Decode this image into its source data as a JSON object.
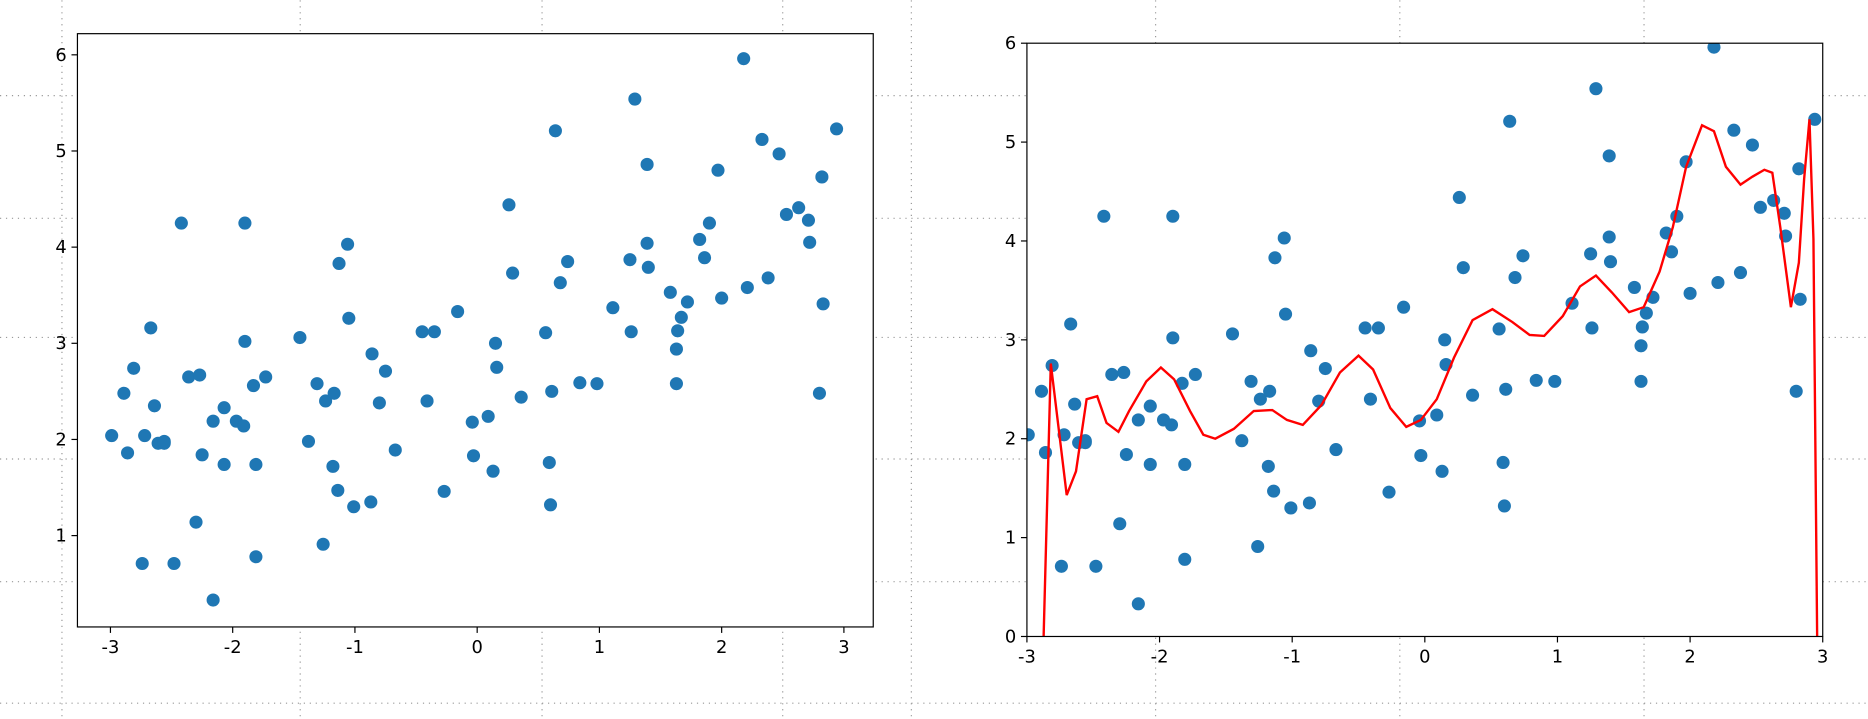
{
  "chart_data": [
    {
      "type": "scatter",
      "xlim": [
        -3.27,
        3.24
      ],
      "ylim": [
        0.05,
        6.22
      ],
      "xticks": [
        -3,
        -2,
        -1,
        0,
        1,
        2,
        3
      ],
      "yticks": [
        1,
        2,
        3,
        4,
        5,
        6
      ],
      "series": [
        {
          "type": "scatter",
          "color": "#1f77b4",
          "x": [
            -2.99,
            -2.89,
            -2.86,
            -2.81,
            -2.74,
            -2.72,
            -2.67,
            -2.64,
            -2.61,
            -2.56,
            -2.56,
            -2.48,
            -2.42,
            -2.36,
            -2.3,
            -2.27,
            -2.25,
            -2.16,
            -2.16,
            -2.07,
            -2.07,
            -1.97,
            -1.91,
            -1.9,
            -1.9,
            -1.83,
            -1.81,
            -1.81,
            -1.73,
            -1.45,
            -1.38,
            -1.31,
            -1.26,
            -1.24,
            -1.17,
            -1.18,
            -1.14,
            -1.13,
            -1.06,
            -1.05,
            -1.01,
            -0.87,
            -0.86,
            -0.8,
            -0.75,
            -0.67,
            -0.45,
            -0.41,
            -0.35,
            -0.27,
            -0.16,
            -0.04,
            -0.03,
            0.09,
            0.13,
            0.15,
            0.16,
            0.26,
            0.29,
            0.36,
            0.56,
            0.59,
            0.6,
            0.61,
            0.64,
            0.68,
            0.74,
            0.84,
            0.98,
            1.11,
            1.25,
            1.26,
            1.29,
            1.39,
            1.39,
            1.4,
            1.58,
            1.63,
            1.63,
            1.64,
            1.67,
            1.72,
            1.82,
            1.86,
            1.9,
            1.97,
            2.0,
            2.18,
            2.21,
            2.33,
            2.38,
            2.47,
            2.53,
            2.63,
            2.71,
            2.72,
            2.82,
            2.83,
            2.8,
            2.94
          ],
          "values": [
            2.04,
            2.48,
            1.86,
            2.74,
            0.71,
            2.04,
            3.16,
            2.35,
            1.96,
            1.98,
            1.96,
            0.71,
            4.25,
            2.65,
            1.14,
            2.67,
            1.84,
            0.33,
            2.19,
            2.33,
            1.74,
            2.19,
            2.14,
            4.25,
            3.02,
            2.56,
            0.78,
            1.74,
            2.65,
            3.06,
            1.98,
            2.58,
            0.91,
            2.4,
            2.48,
            1.72,
            1.47,
            3.83,
            4.03,
            3.26,
            1.3,
            1.35,
            2.89,
            2.38,
            2.71,
            1.89,
            3.12,
            2.4,
            3.12,
            1.46,
            3.33,
            2.18,
            1.83,
            2.24,
            1.67,
            3.0,
            2.75,
            4.44,
            3.73,
            2.44,
            3.11,
            1.76,
            1.32,
            2.5,
            5.21,
            3.63,
            3.85,
            2.59,
            2.58,
            3.37,
            3.87,
            3.12,
            5.54,
            4.86,
            4.04,
            3.79,
            3.53,
            2.58,
            2.94,
            3.13,
            3.27,
            3.43,
            4.08,
            3.89,
            4.25,
            4.8,
            3.47,
            5.96,
            3.58,
            5.12,
            3.68,
            4.97,
            4.34,
            4.41,
            4.28,
            4.05,
            4.73,
            3.41,
            2.48,
            5.23
          ]
        }
      ]
    },
    {
      "type": "scatter",
      "xlim": [
        -3,
        3
      ],
      "ylim": [
        0,
        6
      ],
      "xticks": [
        -3,
        -2,
        -1,
        0,
        1,
        2,
        3
      ],
      "yticks": [
        0,
        1,
        2,
        3,
        4,
        5,
        6
      ],
      "series": [
        {
          "type": "scatter",
          "color": "#1f77b4",
          "x": [
            -2.99,
            -2.89,
            -2.86,
            -2.81,
            -2.74,
            -2.72,
            -2.67,
            -2.64,
            -2.61,
            -2.56,
            -2.56,
            -2.48,
            -2.42,
            -2.36,
            -2.3,
            -2.27,
            -2.25,
            -2.16,
            -2.16,
            -2.07,
            -2.07,
            -1.97,
            -1.91,
            -1.9,
            -1.9,
            -1.83,
            -1.81,
            -1.81,
            -1.73,
            -1.45,
            -1.38,
            -1.31,
            -1.26,
            -1.24,
            -1.17,
            -1.18,
            -1.14,
            -1.13,
            -1.06,
            -1.05,
            -1.01,
            -0.87,
            -0.86,
            -0.8,
            -0.75,
            -0.67,
            -0.45,
            -0.41,
            -0.35,
            -0.27,
            -0.16,
            -0.04,
            -0.03,
            0.09,
            0.13,
            0.15,
            0.16,
            0.26,
            0.29,
            0.36,
            0.56,
            0.59,
            0.6,
            0.61,
            0.64,
            0.68,
            0.74,
            0.84,
            0.98,
            1.11,
            1.25,
            1.26,
            1.29,
            1.39,
            1.39,
            1.4,
            1.58,
            1.63,
            1.63,
            1.64,
            1.67,
            1.72,
            1.82,
            1.86,
            1.9,
            1.97,
            2.0,
            2.18,
            2.21,
            2.33,
            2.38,
            2.47,
            2.53,
            2.63,
            2.71,
            2.72,
            2.82,
            2.83,
            2.8,
            2.94
          ],
          "values": [
            2.04,
            2.48,
            1.86,
            2.74,
            0.71,
            2.04,
            3.16,
            2.35,
            1.96,
            1.98,
            1.96,
            0.71,
            4.25,
            2.65,
            1.14,
            2.67,
            1.84,
            0.33,
            2.19,
            2.33,
            1.74,
            2.19,
            2.14,
            4.25,
            3.02,
            2.56,
            0.78,
            1.74,
            2.65,
            3.06,
            1.98,
            2.58,
            0.91,
            2.4,
            2.48,
            1.72,
            1.47,
            3.83,
            4.03,
            3.26,
            1.3,
            1.35,
            2.89,
            2.38,
            2.71,
            1.89,
            3.12,
            2.4,
            3.12,
            1.46,
            3.33,
            2.18,
            1.83,
            2.24,
            1.67,
            3.0,
            2.75,
            4.44,
            3.73,
            2.44,
            3.11,
            1.76,
            1.32,
            2.5,
            5.21,
            3.63,
            3.85,
            2.59,
            2.58,
            3.37,
            3.87,
            3.12,
            5.54,
            4.86,
            4.04,
            3.79,
            3.53,
            2.58,
            2.94,
            3.13,
            3.27,
            3.43,
            4.08,
            3.89,
            4.25,
            4.8,
            3.47,
            5.96,
            3.58,
            5.12,
            3.68,
            4.97,
            4.34,
            4.41,
            4.28,
            4.05,
            4.73,
            3.41,
            2.48,
            5.23
          ]
        },
        {
          "type": "line",
          "color": "#ff0000",
          "x": [
            -2.88,
            -2.82,
            -2.7,
            -2.63,
            -2.55,
            -2.47,
            -2.4,
            -2.31,
            -2.23,
            -2.1,
            -1.99,
            -1.89,
            -1.77,
            -1.67,
            -1.58,
            -1.44,
            -1.29,
            -1.15,
            -1.04,
            -0.92,
            -0.78,
            -0.64,
            -0.5,
            -0.39,
            -0.26,
            -0.14,
            -0.03,
            0.09,
            0.22,
            0.36,
            0.51,
            0.66,
            0.79,
            0.9,
            1.04,
            1.17,
            1.29,
            1.41,
            1.54,
            1.65,
            1.77,
            1.87,
            1.97,
            2.09,
            2.18,
            2.27,
            2.38,
            2.47,
            2.56,
            2.62,
            2.68,
            2.76,
            2.82,
            2.86,
            2.9,
            2.93,
            2.96
          ],
          "values": [
            -0.3,
            2.76,
            1.43,
            1.67,
            2.4,
            2.43,
            2.16,
            2.07,
            2.28,
            2.58,
            2.72,
            2.6,
            2.28,
            2.04,
            2.0,
            2.1,
            2.28,
            2.29,
            2.19,
            2.14,
            2.34,
            2.67,
            2.84,
            2.7,
            2.31,
            2.12,
            2.19,
            2.4,
            2.82,
            3.2,
            3.31,
            3.18,
            3.05,
            3.04,
            3.24,
            3.54,
            3.65,
            3.48,
            3.28,
            3.33,
            3.69,
            4.14,
            4.75,
            5.17,
            5.11,
            4.75,
            4.57,
            4.65,
            4.72,
            4.69,
            4.14,
            3.33,
            3.78,
            4.63,
            5.23,
            4.02,
            -0.3
          ]
        }
      ]
    }
  ]
}
